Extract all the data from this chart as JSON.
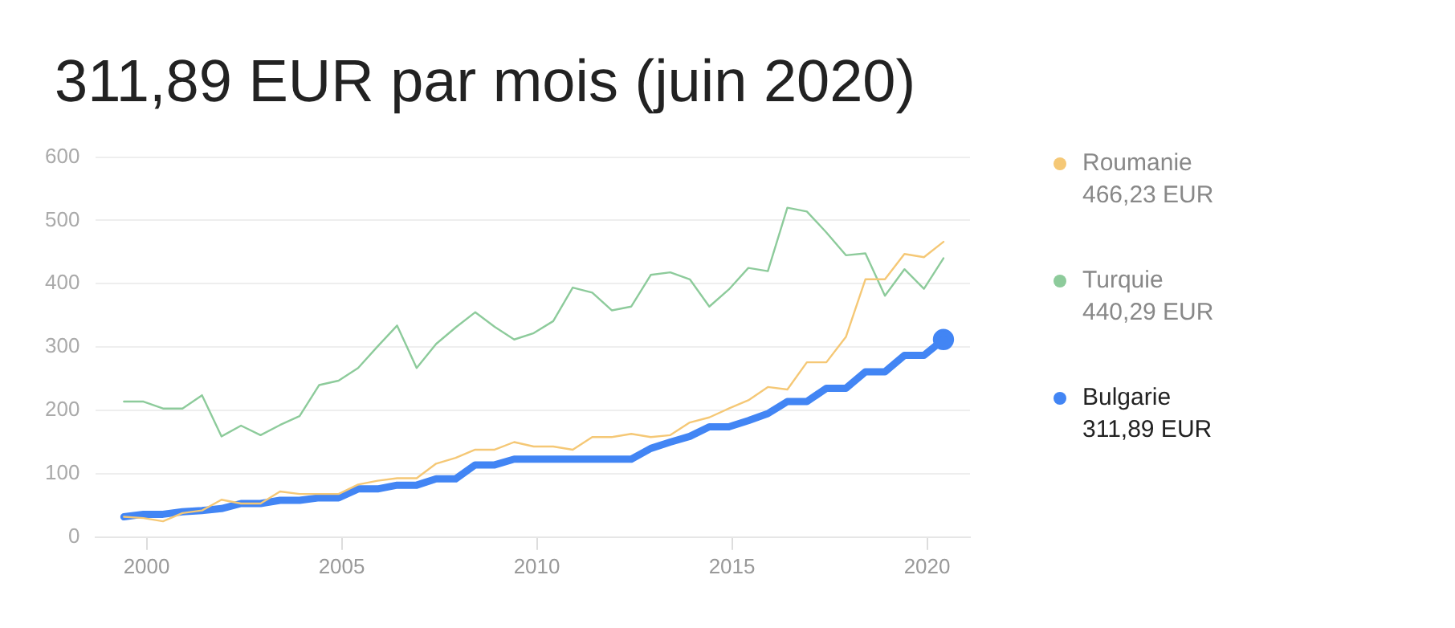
{
  "chart_data": {
    "type": "line",
    "title": "311,89 EUR par mois (juin 2020)",
    "x": [
      1999.42,
      1999.92,
      2000.42,
      2000.92,
      2001.42,
      2001.92,
      2002.42,
      2002.92,
      2003.42,
      2003.92,
      2004.42,
      2004.92,
      2005.42,
      2005.92,
      2006.42,
      2006.92,
      2007.42,
      2007.92,
      2008.42,
      2008.92,
      2009.42,
      2009.92,
      2010.42,
      2010.92,
      2011.42,
      2011.92,
      2012.42,
      2012.92,
      2013.42,
      2013.92,
      2014.42,
      2014.92,
      2015.42,
      2015.92,
      2016.42,
      2016.92,
      2017.42,
      2017.92,
      2018.42,
      2018.92,
      2019.42,
      2019.92,
      2020.42
    ],
    "series": [
      {
        "name": "Roumanie",
        "color": "#f5c876",
        "values": [
          32,
          30,
          25,
          38,
          42,
          59,
          53,
          53,
          72,
          68,
          68,
          68,
          83,
          89,
          93,
          93,
          116,
          125,
          138,
          138,
          150,
          143,
          143,
          138,
          158,
          158,
          163,
          158,
          161,
          181,
          189,
          203,
          216,
          237,
          233,
          276,
          276,
          316,
          407,
          407,
          447,
          442,
          466.23
        ]
      },
      {
        "name": "Turquie",
        "color": "#8dcb9b",
        "values": [
          214,
          214,
          203,
          203,
          224,
          159,
          176,
          161,
          177,
          191,
          240,
          247,
          267,
          301,
          334,
          267,
          305,
          331,
          355,
          332,
          312,
          322,
          341,
          394,
          386,
          358,
          364,
          414,
          418,
          407,
          364,
          391,
          425,
          420,
          520,
          514,
          481,
          445,
          448,
          381,
          423,
          392,
          440.29
        ]
      },
      {
        "name": "Bulgarie",
        "color": "#4285f4",
        "values": [
          32,
          36,
          36,
          40,
          42,
          45,
          53,
          53,
          58,
          58,
          62,
          62,
          76,
          76,
          82,
          82,
          92,
          92,
          114,
          114,
          123,
          123,
          123,
          123,
          123,
          123,
          123,
          140,
          150,
          159,
          174,
          174,
          184,
          195,
          214,
          214,
          235,
          235,
          261,
          261,
          287,
          287,
          311.89
        ]
      },
      {
        "type": "scatter",
        "marker": "circle",
        "color": "#4285f4",
        "x": [
          2020.42
        ],
        "values": [
          311.89
        ]
      }
    ],
    "annotations": [
      "466,23 EUR",
      "440,29 EUR",
      "311,89 EUR"
    ],
    "xlim": [
      1998.7,
      2021.1
    ],
    "xticks": [
      2000,
      2005,
      2010,
      2015,
      2020
    ],
    "ylim": [
      0,
      600
    ],
    "yticks": [
      0,
      100,
      200,
      300,
      400,
      500,
      600
    ],
    "grid": "y",
    "legend": "right",
    "marker": "none",
    "line_style": "solid"
  }
}
